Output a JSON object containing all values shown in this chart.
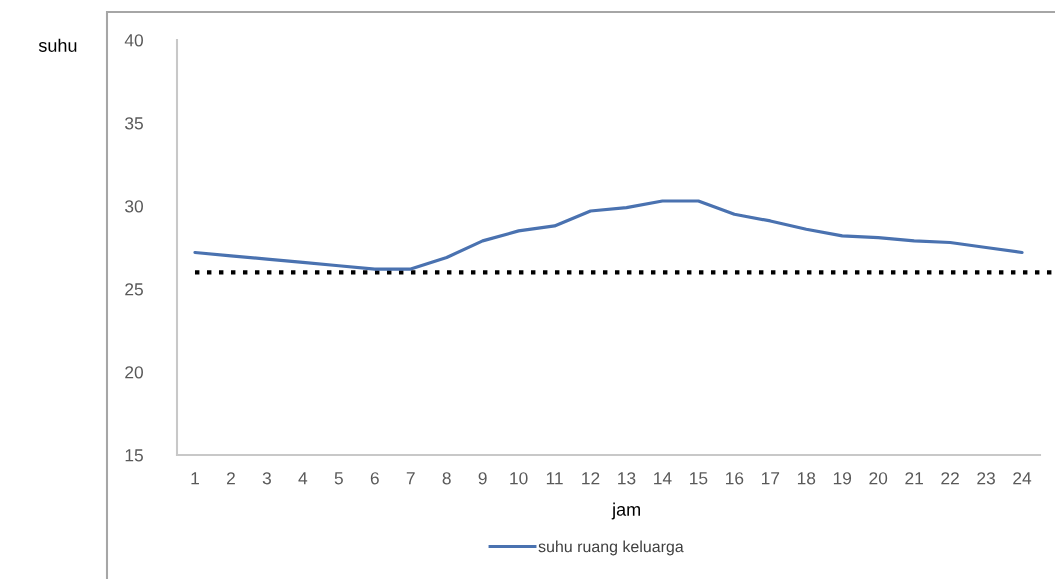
{
  "chart_data": {
    "type": "line",
    "ylabel": "suhu",
    "xlabel": "jam",
    "categories": [
      "1",
      "2",
      "3",
      "4",
      "5",
      "6",
      "7",
      "8",
      "9",
      "10",
      "11",
      "12",
      "13",
      "14",
      "15",
      "16",
      "17",
      "18",
      "19",
      "20",
      "21",
      "22",
      "23",
      "24"
    ],
    "series": [
      {
        "name": "suhu ruang keluarga",
        "color": "#4a72b0",
        "values": [
          27.2,
          27.0,
          26.8,
          26.6,
          26.4,
          26.2,
          26.2,
          26.9,
          27.9,
          28.5,
          28.8,
          29.7,
          29.9,
          30.3,
          30.3,
          29.5,
          29.1,
          28.6,
          28.2,
          28.1,
          27.9,
          27.8,
          27.5,
          27.2
        ]
      }
    ],
    "ylim": [
      15,
      40
    ],
    "yticks": [
      15,
      20,
      25,
      30,
      35,
      40
    ],
    "ref_lines": [
      {
        "axis": "y",
        "value": 26,
        "color": "#000000",
        "line_style": "dotted"
      }
    ],
    "legend": "bottom",
    "line_style": "solid"
  }
}
